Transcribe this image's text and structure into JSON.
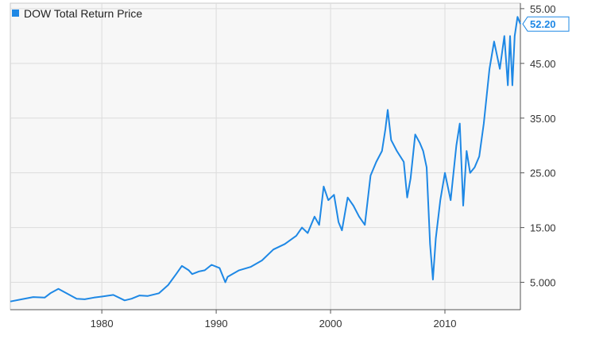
{
  "chart_data": {
    "type": "line",
    "title": "",
    "xlabel": "",
    "ylabel": "",
    "legend": {
      "position": "top-left"
    },
    "grid": true,
    "xlim": [
      1972.0,
      2016.6
    ],
    "ylim": [
      0,
      56
    ],
    "x_ticks": [
      1980,
      1990,
      2000,
      2010
    ],
    "y_ticks": [
      5,
      15,
      25,
      35,
      45,
      55
    ],
    "y_tick_labels": [
      "5.000",
      "15.00",
      "25.00",
      "35.00",
      "45.00",
      "55.00"
    ],
    "last_value_label": "52.20",
    "colors": {
      "series": "#1e88e5",
      "grid": "#dcdcdc",
      "plot_bg": "#f7f7f7",
      "axis_text": "#333333"
    },
    "series": [
      {
        "name": "DOW Total Return Price",
        "x": [
          1972.0,
          1973.0,
          1974.0,
          1975.0,
          1975.5,
          1976.2,
          1977.0,
          1977.8,
          1978.5,
          1979.3,
          1980.0,
          1981.0,
          1982.0,
          1982.6,
          1983.3,
          1984.0,
          1985.0,
          1985.8,
          1986.5,
          1987.0,
          1987.6,
          1987.9,
          1988.5,
          1989.0,
          1989.6,
          1990.3,
          1990.8,
          1991.0,
          1992.0,
          1993.0,
          1994.0,
          1995.0,
          1996.0,
          1997.0,
          1997.5,
          1998.0,
          1998.6,
          1999.0,
          1999.4,
          1999.8,
          2000.3,
          2000.7,
          2001.0,
          2001.5,
          2002.0,
          2002.5,
          2003.0,
          2003.5,
          2004.0,
          2004.5,
          2004.8,
          2005.0,
          2005.3,
          2005.8,
          2006.4,
          2006.7,
          2007.0,
          2007.4,
          2007.8,
          2008.1,
          2008.4,
          2008.7,
          2008.95,
          2009.2,
          2009.6,
          2010.0,
          2010.5,
          2011.0,
          2011.3,
          2011.6,
          2011.9,
          2012.2,
          2012.6,
          2013.0,
          2013.4,
          2013.9,
          2014.3,
          2014.8,
          2015.2,
          2015.5,
          2015.7,
          2015.9,
          2016.1,
          2016.35,
          2016.6
        ],
        "values": [
          1.5,
          1.9,
          2.3,
          2.2,
          3.0,
          3.8,
          2.9,
          2.0,
          1.9,
          2.2,
          2.4,
          2.7,
          1.7,
          2.0,
          2.6,
          2.5,
          3.0,
          4.5,
          6.5,
          8.0,
          7.2,
          6.5,
          7.0,
          7.2,
          8.2,
          7.6,
          5.0,
          6.0,
          7.2,
          7.8,
          9.0,
          11.0,
          12.0,
          13.5,
          15.0,
          14.0,
          17.0,
          15.5,
          22.5,
          20.0,
          21.0,
          16.0,
          14.5,
          20.5,
          19.0,
          17.0,
          15.5,
          24.5,
          27.0,
          29.0,
          33.0,
          36.5,
          31.0,
          29.0,
          27.0,
          20.5,
          24.0,
          32.0,
          30.5,
          29.0,
          26.0,
          12.0,
          5.5,
          13.0,
          20.0,
          25.0,
          20.0,
          30.0,
          34.0,
          19.0,
          29.0,
          25.0,
          26.0,
          28.0,
          34.0,
          44.0,
          49.0,
          44.0,
          50.0,
          41.0,
          50.0,
          41.0,
          50.0,
          53.5,
          52.2
        ]
      }
    ]
  }
}
